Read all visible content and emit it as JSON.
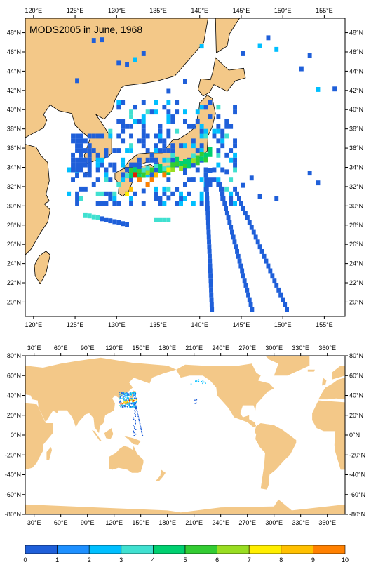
{
  "title": "MODS2005 in June, 1968",
  "colors": {
    "land": "#f3c888",
    "ocean": "#ffffff",
    "frame": "#000000"
  },
  "top_map": {
    "lon_labels": [
      "120°E",
      "125°E",
      "130°E",
      "135°E",
      "140°E",
      "145°E",
      "150°E",
      "155°E"
    ],
    "lat_labels": [
      "48°N",
      "46°N",
      "44°N",
      "42°N",
      "40°N",
      "38°N",
      "36°N",
      "34°N",
      "32°N",
      "30°N",
      "28°N",
      "26°N",
      "24°N",
      "22°N",
      "20°N"
    ],
    "lon_range": [
      119,
      157.5
    ],
    "lat_range": [
      18.5,
      49.5
    ]
  },
  "bottom_map": {
    "lon_labels": [
      "30°E",
      "60°E",
      "90°E",
      "120°E",
      "150°E",
      "180°E",
      "210°E",
      "240°E",
      "270°E",
      "300°E",
      "330°E",
      "360°E"
    ],
    "lat_labels": [
      "80°N",
      "60°N",
      "40°N",
      "20°N",
      "0°N",
      "-20°N",
      "-40°N",
      "-60°N",
      "-80°N"
    ],
    "lon_range": [
      20,
      380
    ],
    "lat_range": [
      -80,
      80
    ]
  },
  "colorbar": {
    "labels": [
      "0",
      "1",
      "2",
      "3",
      "4",
      "5",
      "6",
      "7",
      "8",
      "9",
      "10"
    ],
    "colors": [
      "#1f5fd9",
      "#1e90ff",
      "#00bfff",
      "#40e0d0",
      "#00d070",
      "#33cc33",
      "#99dd22",
      "#ffee00",
      "#ffc000",
      "#ff8000",
      "#e02000"
    ]
  }
}
